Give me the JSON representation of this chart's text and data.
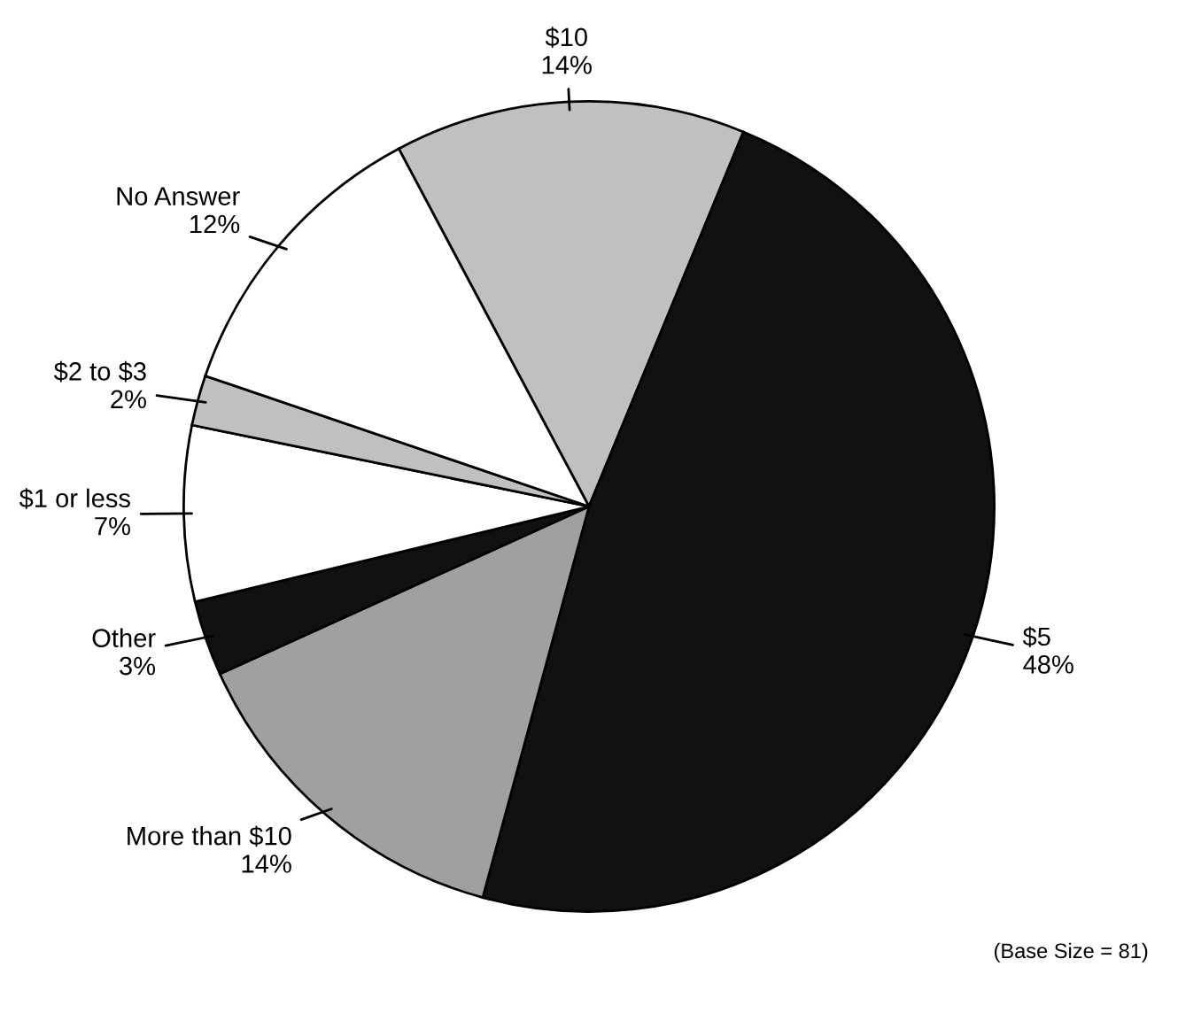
{
  "chart_data": {
    "type": "pie",
    "categories": [
      "$10",
      "$5",
      "More than $10",
      "Other",
      "$1 or less",
      "$2 to $3",
      "No Answer"
    ],
    "values": [
      14,
      48,
      14,
      3,
      7,
      2,
      12
    ],
    "colors": [
      "#c0c0c0",
      "#111111",
      "#a0a0a0",
      "#111111",
      "#ffffff",
      "#c0c0c0",
      "#ffffff"
    ],
    "value_labels": [
      "14%",
      "48%",
      "14%",
      "3%",
      "7%",
      "2%",
      "12%"
    ],
    "annotations": [
      "(Base Size = 81)"
    ],
    "legend": false
  }
}
